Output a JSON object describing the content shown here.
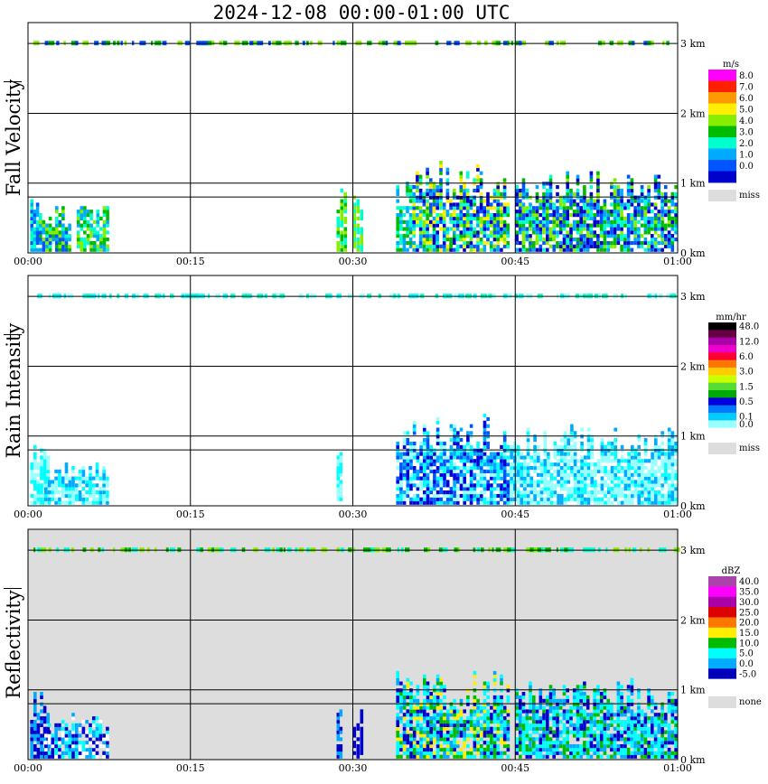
{
  "title": "2024-12-08  00:00-01:00 UTC",
  "panels": [
    {
      "ylabel": "Fall Velocity",
      "unit": "m/s",
      "background": "#ffffff",
      "legend": [
        {
          "label": "8.0",
          "color": "#ff00ff"
        },
        {
          "label": "7.0",
          "color": "#ff2000"
        },
        {
          "label": "6.0",
          "color": "#ff9900"
        },
        {
          "label": "5.0",
          "color": "#ffee00"
        },
        {
          "label": "4.0",
          "color": "#88ee00"
        },
        {
          "label": "3.0",
          "color": "#00bb00"
        },
        {
          "label": "2.0",
          "color": "#00ffcc"
        },
        {
          "label": "1.0",
          "color": "#00aaff"
        },
        {
          "label": "0.0",
          "color": "#0055ff"
        },
        {
          "label": "",
          "color": "#0000cc"
        }
      ],
      "miss_label": "miss"
    },
    {
      "ylabel": "Rain Intensity",
      "unit": "mm/hr",
      "background": "#ffffff",
      "legend": [
        {
          "label": "48.0",
          "color": "#000000"
        },
        {
          "label": "",
          "color": "#660044"
        },
        {
          "label": "12.0",
          "color": "#aa00aa"
        },
        {
          "label": "",
          "color": "#ee00cc"
        },
        {
          "label": "6.0",
          "color": "#ff0033"
        },
        {
          "label": "",
          "color": "#ff7700"
        },
        {
          "label": "3.0",
          "color": "#ffcc00"
        },
        {
          "label": "",
          "color": "#ccff00"
        },
        {
          "label": "1.5",
          "color": "#55dd33"
        },
        {
          "label": "",
          "color": "#00aa00"
        },
        {
          "label": "0.5",
          "color": "#0000dd"
        },
        {
          "label": "",
          "color": "#0077ff"
        },
        {
          "label": "0.1",
          "color": "#00ccff"
        },
        {
          "label": "0.0",
          "color": "#99ffff"
        },
        {
          "label": "",
          "color": "#ffffff"
        }
      ],
      "miss_label": "miss"
    },
    {
      "ylabel": "Reflectivity",
      "unit": "dBZ",
      "background": "#dddddd",
      "legend": [
        {
          "label": "40.0",
          "color": "#aa44aa"
        },
        {
          "label": "35.0",
          "color": "#ff00ff"
        },
        {
          "label": "30.0",
          "color": "#aa00aa"
        },
        {
          "label": "25.0",
          "color": "#dd0000"
        },
        {
          "label": "20.0",
          "color": "#ff7700"
        },
        {
          "label": "15.0",
          "color": "#ffee00"
        },
        {
          "label": "10.0",
          "color": "#00bb00"
        },
        {
          "label": "5.0",
          "color": "#00ffff"
        },
        {
          "label": "0.0",
          "color": "#00aaff"
        },
        {
          "label": "-5.0",
          "color": "#0000bb"
        },
        {
          "label": "",
          "color": "#ffffff"
        }
      ],
      "miss_label": "none"
    }
  ],
  "chart_data": {
    "type": "heatmap",
    "x_range": [
      "00:00",
      "01:00"
    ],
    "xticks": [
      "00:00",
      "00:15",
      "00:30",
      "00:45",
      "01:00"
    ],
    "ylim_km": [
      0,
      3.3
    ],
    "yticks": [
      "0 km",
      "1 km",
      "2 km",
      "3 km"
    ],
    "grid": true,
    "palette": {
      "blue_dark": "#0000cc",
      "blue": "#0055ff",
      "sky": "#00aaff",
      "cyan": "#00ffff",
      "aqua": "#00ffcc",
      "green": "#00bb00",
      "lime": "#88ee00",
      "yellow": "#ffee00",
      "orange": "#ff9900",
      "red": "#ff2000",
      "magenta": "#ff00ff",
      "light_cyan": "#99ffff",
      "white": "#ffffff",
      "dark_blue_ri": "#0000dd"
    }
  }
}
